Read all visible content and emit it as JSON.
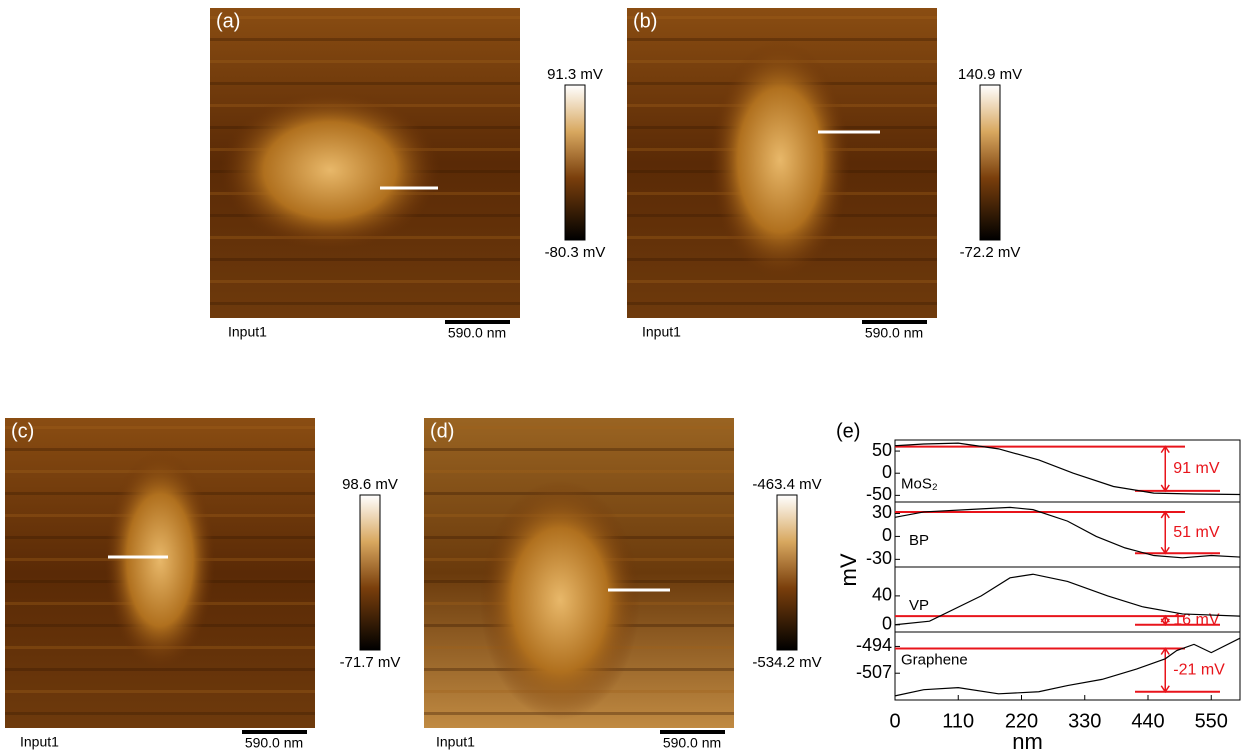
{
  "panels": [
    {
      "label": "(a)",
      "colorbar_max": "91.3 mV",
      "colorbar_min": "-80.3 mV",
      "channel": "Input1",
      "scale": "590.0 nm"
    },
    {
      "label": "(b)",
      "colorbar_max": "140.9 mV",
      "colorbar_min": "-72.2 mV",
      "channel": "Input1",
      "scale": "590.0 nm"
    },
    {
      "label": "(c)",
      "colorbar_max": "98.6 mV",
      "colorbar_min": "-71.7 mV",
      "channel": "Input1",
      "scale": "590.0 nm"
    },
    {
      "label": "(d)",
      "colorbar_max": "-463.4 mV",
      "colorbar_min": "-534.2 mV",
      "channel": "Input1",
      "scale": "590.0 nm"
    }
  ],
  "chart_data": {
    "type": "line",
    "label": "(e)",
    "xlabel": "nm",
    "ylabel": "mV",
    "xlim": [
      0,
      600
    ],
    "xticks": [
      0,
      110,
      220,
      330,
      440,
      550
    ],
    "subplots": [
      {
        "name": "MoS₂",
        "color": "#000000",
        "x": [
          0,
          50,
          110,
          180,
          250,
          310,
          380,
          450,
          520,
          600
        ],
        "values": [
          62,
          66,
          68,
          55,
          30,
          0,
          -30,
          -45,
          -47,
          -48
        ],
        "ylim": [
          -65,
          75
        ],
        "yticks": [
          50,
          0,
          -50
        ],
        "levels": [
          60,
          -40
        ],
        "level_color": "#e8141b",
        "annotation": "91 mV"
      },
      {
        "name": "BP",
        "color": "#000000",
        "x": [
          0,
          50,
          150,
          200,
          240,
          300,
          350,
          400,
          450,
          500,
          550,
          600
        ],
        "values": [
          25,
          32,
          36,
          38,
          35,
          20,
          0,
          -15,
          -25,
          -28,
          -25,
          -27
        ],
        "ylim": [
          -40,
          45
        ],
        "yticks": [
          30,
          0,
          -30
        ],
        "levels": [
          32,
          -22
        ],
        "level_color": "#e8141b",
        "annotation": "51 mV"
      },
      {
        "name": "VP",
        "color": "#000000",
        "x": [
          0,
          60,
          150,
          200,
          240,
          300,
          370,
          430,
          500,
          600
        ],
        "values": [
          0,
          5,
          40,
          65,
          70,
          60,
          40,
          25,
          15,
          12
        ],
        "ylim": [
          -10,
          80
        ],
        "yticks": [
          40,
          0
        ],
        "levels": [
          12,
          0
        ],
        "level_color": "#e8141b",
        "annotation": "16 mV"
      },
      {
        "name": "Graphene",
        "color": "#000000",
        "x": [
          0,
          50,
          110,
          180,
          250,
          300,
          360,
          420,
          470,
          490,
          520,
          550,
          600
        ],
        "values": [
          -518,
          -515,
          -514,
          -517,
          -516,
          -513,
          -510,
          -505,
          -500,
          -496,
          -493,
          -497,
          -490
        ],
        "ylim": [
          -520,
          -487
        ],
        "yticks": [
          -494,
          -507
        ],
        "levels": [
          -495,
          -516
        ],
        "level_color": "#e8141b",
        "annotation": "-21 mV"
      }
    ]
  }
}
